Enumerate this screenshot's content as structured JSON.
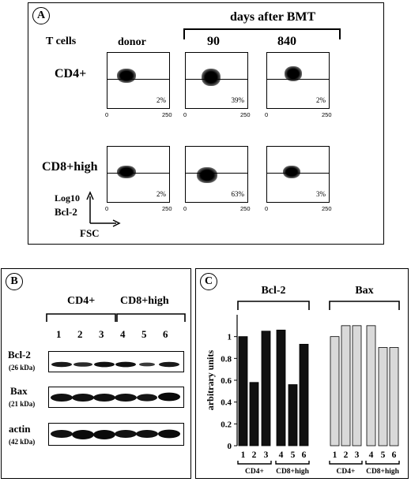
{
  "panelA": {
    "badge": "A",
    "days_header": "days after BMT",
    "t_cells": "T cells",
    "col_donor": "donor",
    "col_90": "90",
    "col_840": "840",
    "row_cd4": "CD4+",
    "row_cd8": "CD8+high",
    "y_axis": "Log10",
    "y_axis2": "Bcl-2",
    "x_axis": "FSC",
    "tick_zero": "0",
    "tick_250": "250",
    "percents": [
      "2%",
      "39%",
      "2%",
      "2%",
      "63%",
      "3%"
    ]
  },
  "panelB": {
    "badge": "B",
    "group1": "CD4+",
    "group2": "CD8+high",
    "lanes": [
      "1",
      "2",
      "3",
      "4",
      "5",
      "6"
    ],
    "rows": [
      {
        "label": "Bcl-2",
        "kda": "(26 kDa)"
      },
      {
        "label": "Bax",
        "kda": "(21 kDa)"
      },
      {
        "label": "actin",
        "kda": "(42 kDa)"
      }
    ]
  },
  "panelC": {
    "badge": "C",
    "chart_data": {
      "type": "bar",
      "ylabel": "arbitrary units",
      "ylim": [
        0,
        1.2
      ],
      "yticks": [
        "0",
        "0.2",
        "0.4",
        "0.6",
        "0.8",
        "1"
      ],
      "groups": [
        {
          "name": "Bcl-2",
          "color": "#111111",
          "lanes": [
            "1",
            "2",
            "3",
            "4",
            "5",
            "6"
          ],
          "values": [
            1.0,
            0.58,
            1.05,
            1.06,
            0.56,
            0.93
          ]
        },
        {
          "name": "Bax",
          "color": "#d9d9d9",
          "lanes": [
            "1",
            "2",
            "3",
            "4",
            "5",
            "6"
          ],
          "values": [
            1.0,
            1.1,
            1.1,
            1.1,
            0.9,
            0.9
          ]
        }
      ],
      "subgroup_labels": [
        "CD4+",
        "CD8+high",
        "CD4+",
        "CD8+high"
      ]
    }
  }
}
